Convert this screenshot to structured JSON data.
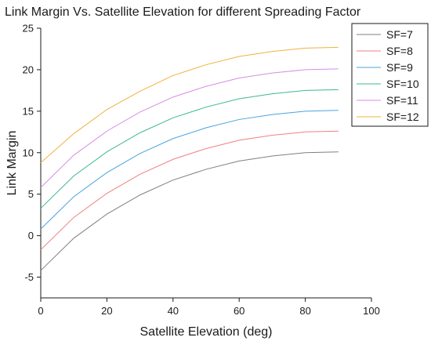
{
  "chart_data": {
    "type": "line",
    "title": "Link Margin Vs. Satellite Elevation for different Spreading Factor",
    "xlabel": "Satellite Elevation (deg)",
    "ylabel": "Link Margin",
    "xlim": [
      0,
      100
    ],
    "ylim": [
      -7.5,
      25
    ],
    "xticks": [
      0,
      20,
      40,
      60,
      80,
      100
    ],
    "yticks": [
      -5,
      0,
      5,
      10,
      15,
      20,
      25
    ],
    "grid": false,
    "legend": "top-right",
    "x": [
      0,
      10,
      20,
      30,
      40,
      50,
      60,
      70,
      80,
      90
    ],
    "series": [
      {
        "name": "SF=7",
        "color": "#7f7f7f",
        "values": [
          -4.2,
          -0.3,
          2.6,
          4.9,
          6.7,
          8.0,
          9.0,
          9.6,
          10.0,
          10.1
        ]
      },
      {
        "name": "SF=8",
        "color": "#f08080",
        "values": [
          -1.7,
          2.2,
          5.1,
          7.4,
          9.2,
          10.5,
          11.5,
          12.1,
          12.5,
          12.6
        ]
      },
      {
        "name": "SF=9",
        "color": "#4aa3df",
        "values": [
          0.8,
          4.7,
          7.6,
          9.9,
          11.7,
          13.0,
          14.0,
          14.6,
          15.0,
          15.1
        ]
      },
      {
        "name": "SF=10",
        "color": "#3cb98f",
        "values": [
          3.3,
          7.2,
          10.1,
          12.4,
          14.2,
          15.5,
          16.5,
          17.1,
          17.5,
          17.6
        ]
      },
      {
        "name": "SF=11",
        "color": "#d98be8",
        "values": [
          5.8,
          9.7,
          12.6,
          14.9,
          16.7,
          18.0,
          19.0,
          19.6,
          20.0,
          20.1
        ]
      },
      {
        "name": "SF=12",
        "color": "#f0b23c",
        "values": [
          8.8,
          12.3,
          15.2,
          17.4,
          19.3,
          20.6,
          21.6,
          22.2,
          22.6,
          22.7
        ]
      }
    ]
  }
}
